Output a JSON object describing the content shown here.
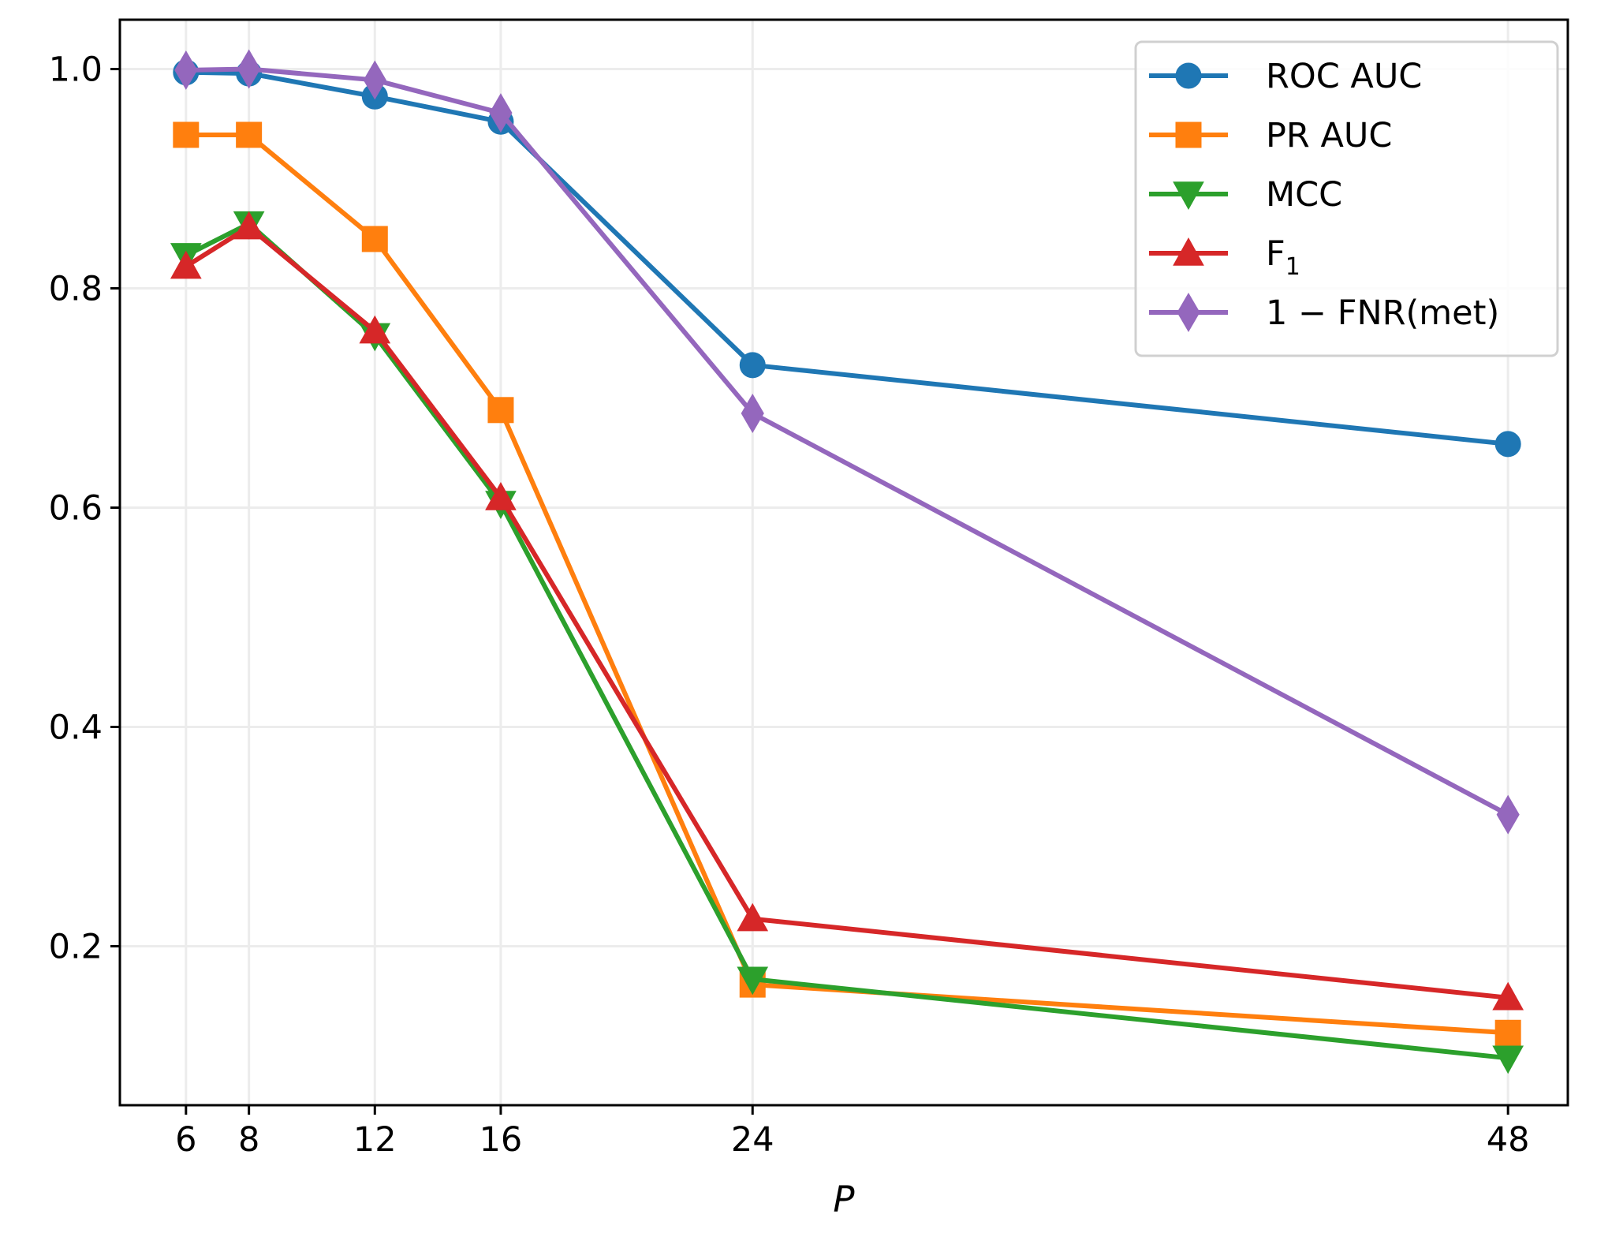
{
  "chart_data": {
    "type": "line",
    "title": "",
    "xlabel": "P",
    "ylabel": "",
    "x": [
      6,
      8,
      12,
      16,
      24,
      48
    ],
    "x_ticks": [
      6,
      8,
      12,
      16,
      24,
      48
    ],
    "x_tick_labels": [
      "6",
      "8",
      "12",
      "16",
      "24",
      "48"
    ],
    "y_ticks": [
      0.2,
      0.4,
      0.6,
      0.8,
      1.0
    ],
    "y_tick_labels": [
      "0.2",
      "0.4",
      "0.6",
      "0.8",
      "1.0"
    ],
    "xlim": [
      3.9,
      49.9
    ],
    "ylim": [
      0.055,
      1.045
    ],
    "grid": true,
    "legend_position": "top-right",
    "series": [
      {
        "name": "ROC AUC",
        "label_main": "ROC AUC",
        "label_sub": "",
        "color": "#1f77b4",
        "marker": "circle",
        "values": [
          0.997,
          0.996,
          0.975,
          0.952,
          0.73,
          0.658
        ]
      },
      {
        "name": "PR AUC",
        "label_main": "PR AUC",
        "label_sub": "",
        "color": "#ff7f0e",
        "marker": "square",
        "values": [
          0.94,
          0.94,
          0.845,
          0.689,
          0.165,
          0.121
        ]
      },
      {
        "name": "MCC",
        "label_main": "MCC",
        "label_sub": "",
        "color": "#2ca02c",
        "marker": "triangle-down",
        "values": [
          0.83,
          0.859,
          0.757,
          0.604,
          0.17,
          0.098
        ]
      },
      {
        "name": "F1",
        "label_main": "F",
        "label_sub": "1",
        "color": "#d62728",
        "marker": "triangle-up",
        "values": [
          0.82,
          0.856,
          0.761,
          0.609,
          0.225,
          0.153
        ]
      },
      {
        "name": "1 − FNR(met)",
        "label_main": "1 − FNR(met)",
        "label_sub": "",
        "color": "#9467bd",
        "marker": "diamond",
        "values": [
          0.999,
          1.0,
          0.99,
          0.96,
          0.686,
          0.32
        ]
      }
    ]
  }
}
